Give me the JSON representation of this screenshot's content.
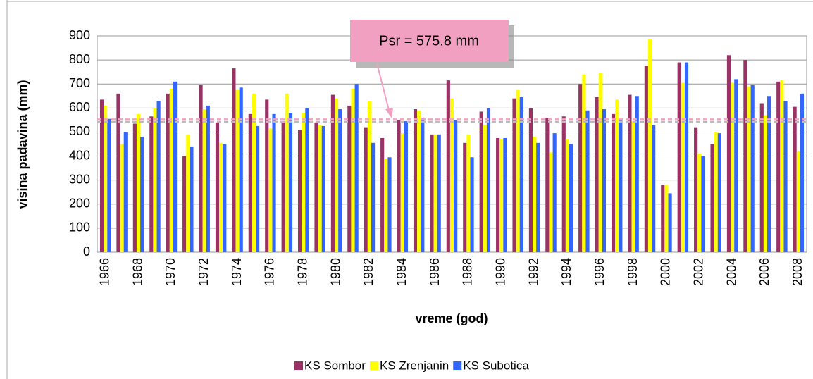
{
  "chart_data": {
    "type": "bar",
    "annotation": "Psr = 575.8 mm",
    "xlabel": "vreme (god)",
    "ylabel": "visina padavina (mm)",
    "categories": [
      "1966",
      null,
      "1968",
      null,
      "1970",
      null,
      "1972",
      null,
      "1974",
      null,
      "1976",
      null,
      "1978",
      null,
      "1980",
      null,
      "1982",
      null,
      "1984",
      null,
      "1986",
      null,
      "1988",
      null,
      "1990",
      null,
      "1992",
      null,
      "1994",
      null,
      "1996",
      null,
      "1998",
      null,
      "2000",
      null,
      "2002",
      null,
      "2004",
      null,
      "2006",
      null,
      "2008"
    ],
    "series": [
      {
        "name": "KS Sombor",
        "color": "#993366",
        "values": [
          635,
          660,
          535,
          565,
          660,
          400,
          695,
          540,
          765,
          575,
          635,
          545,
          510,
          540,
          655,
          610,
          520,
          475,
          550,
          595,
          490,
          715,
          455,
          585,
          475,
          640,
          600,
          560,
          565,
          700,
          645,
          575,
          655,
          775,
          280,
          790,
          520,
          450,
          820,
          800,
          620,
          710,
          605
        ]
      },
      {
        "name": "KS Zrenjanin",
        "color": "#ffff00",
        "values": [
          610,
          450,
          575,
          600,
          680,
          490,
          595,
          455,
          675,
          660,
          515,
          660,
          580,
          530,
          640,
          680,
          630,
          390,
          495,
          590,
          490,
          640,
          490,
          530,
          470,
          675,
          480,
          415,
          470,
          740,
          745,
          635,
          545,
          885,
          280,
          705,
          410,
          500,
          705,
          690,
          570,
          715,
          420
        ]
      },
      {
        "name": "KS Subotica",
        "color": "#3366ff",
        "values": [
          555,
          500,
          480,
          630,
          710,
          440,
          610,
          450,
          685,
          525,
          575,
          580,
          600,
          525,
          595,
          700,
          455,
          395,
          545,
          560,
          490,
          550,
          395,
          600,
          475,
          645,
          455,
          495,
          450,
          590,
          595,
          555,
          650,
          530,
          245,
          790,
          400,
          495,
          720,
          695,
          650,
          630,
          660
        ]
      }
    ],
    "reference_lines": [
      {
        "value": 553,
        "color": "#f4a0c0"
      },
      {
        "value": 543,
        "color": "#bbbbbb"
      }
    ],
    "ylim": [
      0,
      900
    ],
    "yticks": [
      0,
      100,
      200,
      300,
      400,
      500,
      600,
      700,
      800,
      900
    ],
    "grid": true,
    "legend": "bottom"
  }
}
